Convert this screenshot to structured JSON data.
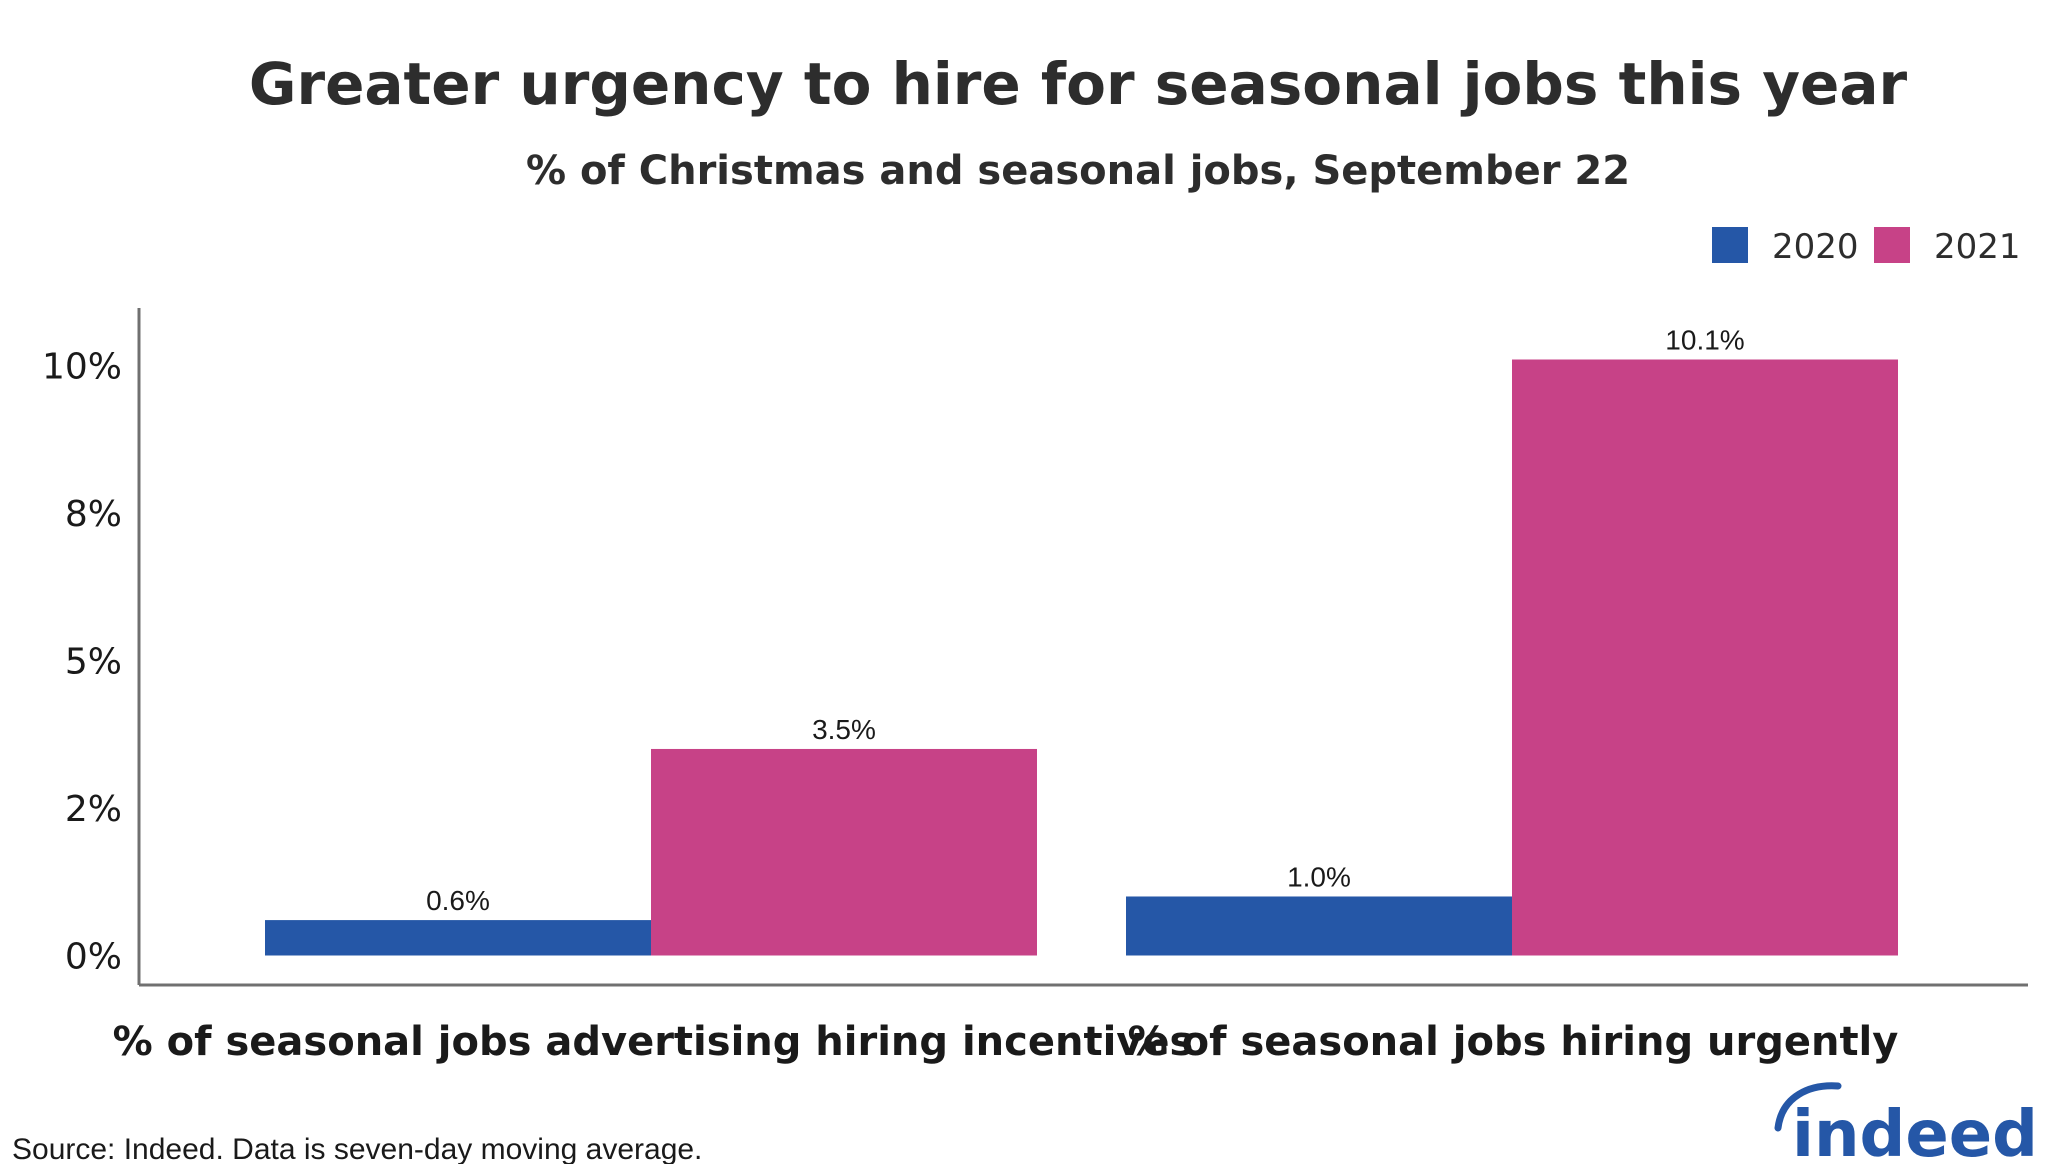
{
  "chart_data": {
    "type": "bar",
    "title": "Greater urgency to hire for seasonal jobs this year",
    "subtitle": "% of Christmas and seasonal jobs, September 22",
    "categories": [
      "% of seasonal jobs advertising hiring incentives",
      "% of seasonal jobs hiring urgently"
    ],
    "series": [
      {
        "name": "2020",
        "values": [
          0.6,
          1.0
        ],
        "labels": [
          "0.6%",
          "1.0%"
        ],
        "color": "#2557a7"
      },
      {
        "name": "2021",
        "values": [
          3.5,
          10.1
        ],
        "labels": [
          "3.5%",
          "10.1%"
        ],
        "color": "#c74287"
      }
    ],
    "yticks": [
      {
        "value": 0,
        "label": "0%"
      },
      {
        "value": 2.5,
        "label": "2%"
      },
      {
        "value": 5,
        "label": "5%"
      },
      {
        "value": 7.5,
        "label": "8%"
      },
      {
        "value": 10,
        "label": "10%"
      }
    ],
    "ylim": [
      -0.5,
      10.6
    ],
    "xlabel": "",
    "ylabel": "",
    "grid": false,
    "legend_position": "top-right",
    "source": "Source: Indeed. Data is seven-day moving average.",
    "logo_text": "indeed",
    "colors": {
      "text": "#2d2d2d",
      "axis": "#707070",
      "logo": "#2557a7"
    }
  }
}
